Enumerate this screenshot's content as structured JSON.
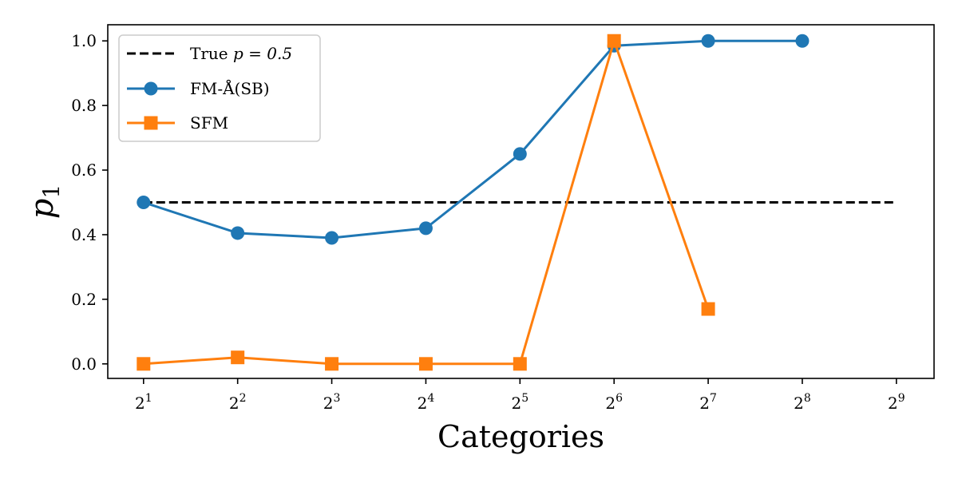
{
  "chart_data": {
    "type": "line",
    "xlabel": "Categories",
    "ylabel": "p",
    "ylabel_subscript": "1",
    "x": [
      1,
      2,
      3,
      4,
      5,
      6,
      7,
      8,
      9
    ],
    "x_tick_labels": [
      {
        "base": "2",
        "exp": "1"
      },
      {
        "base": "2",
        "exp": "2"
      },
      {
        "base": "2",
        "exp": "3"
      },
      {
        "base": "2",
        "exp": "4"
      },
      {
        "base": "2",
        "exp": "5"
      },
      {
        "base": "2",
        "exp": "6"
      },
      {
        "base": "2",
        "exp": "7"
      },
      {
        "base": "2",
        "exp": "8"
      },
      {
        "base": "2",
        "exp": "9"
      }
    ],
    "xlim": [
      0.62,
      9.4
    ],
    "ylim": [
      -0.045,
      1.05
    ],
    "y_ticks": [
      0.0,
      0.2,
      0.4,
      0.6,
      0.8,
      1.0
    ],
    "y_tick_labels": [
      "0.0",
      "0.2",
      "0.4",
      "0.6",
      "0.8",
      "1.0"
    ],
    "grid": false,
    "legend_position": "top-left",
    "series": [
      {
        "name": "True p = 0.5",
        "legend_prefix": "True ",
        "legend_math": "p = 0.5",
        "style": "dashed",
        "marker": "none",
        "color": "#000000",
        "x": [
          1,
          9
        ],
        "values": [
          0.5,
          0.5
        ]
      },
      {
        "name": "FM-Å(SB)",
        "style": "solid",
        "marker": "circle",
        "color": "#1f77b4",
        "x": [
          1,
          2,
          3,
          4,
          5,
          6,
          7,
          8
        ],
        "values": [
          0.5,
          0.405,
          0.39,
          0.42,
          0.65,
          0.985,
          1.0,
          1.0
        ]
      },
      {
        "name": "SFM",
        "style": "solid",
        "marker": "square",
        "color": "#ff7f0e",
        "x": [
          1,
          2,
          3,
          4,
          5,
          6,
          7
        ],
        "values": [
          0.0,
          0.02,
          0.0,
          0.0,
          0.0,
          1.0,
          0.17
        ]
      }
    ]
  }
}
